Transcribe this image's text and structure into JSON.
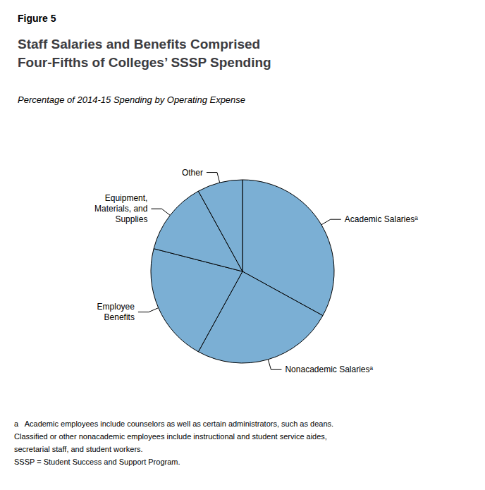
{
  "chart_data": {
    "type": "pie",
    "figure_label": "Figure 5",
    "title": "Staff Salaries and Benefits Comprised\nFour-Fifths of Colleges’ SSSP Spending",
    "subtitle": "Percentage of 2014-15 Spending by Operating Expense",
    "categories": [
      "Academic Salariesᵃ",
      "Nonacademic Salariesᵃ",
      "Employee\nBenefits",
      "Equipment,\nMaterials, and\nSupplies",
      "Other"
    ],
    "values": [
      33,
      25,
      21,
      13,
      8
    ],
    "color": "#7BAFD4",
    "data_labels": false,
    "footnote": [
      "a   Academic employees include counselors as well as certain administrators, such as deans.",
      "Classified or other nonacademic employees include instructional and student service aides,",
      "secretarial staff, and student workers.",
      "SSSP = Student Success and Support Program."
    ]
  }
}
